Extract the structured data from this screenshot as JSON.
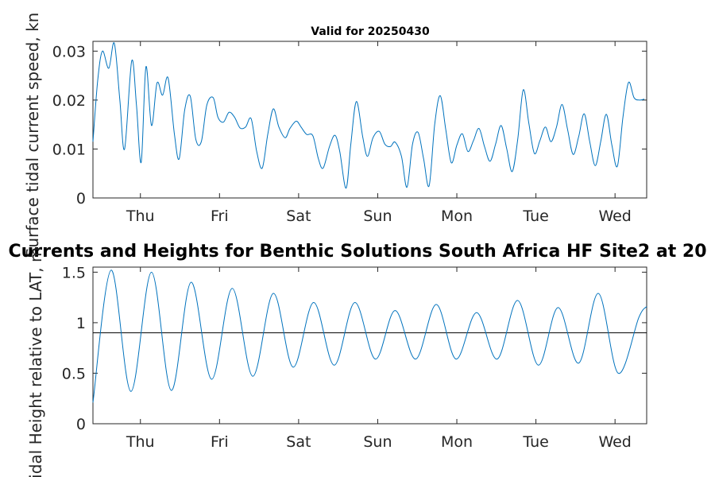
{
  "chart_data": [
    {
      "type": "line",
      "title": "Valid for 20250430",
      "ylabel": "Surface tidal current speed, kn",
      "xlabel": "",
      "ylim": [
        0,
        0.032
      ],
      "yticks": [
        0,
        0.01,
        0.02,
        0.03
      ],
      "ytick_labels": [
        "0",
        "0.01",
        "0.02",
        "0.03"
      ],
      "xlim": [
        0,
        7
      ],
      "xticks": [
        0.6,
        1.6,
        2.6,
        3.6,
        4.6,
        5.6,
        6.6
      ],
      "xtick_labels": [
        "Thu",
        "Fri",
        "Sat",
        "Sun",
        "Mon",
        "Tue",
        "Wed"
      ],
      "grid": false,
      "series": [
        {
          "color": "#0072bd",
          "x": [
            0.0,
            0.06,
            0.12,
            0.2,
            0.27,
            0.34,
            0.4,
            0.49,
            0.55,
            0.61,
            0.67,
            0.74,
            0.81,
            0.88,
            0.95,
            1.03,
            1.09,
            1.16,
            1.23,
            1.3,
            1.37,
            1.44,
            1.52,
            1.58,
            1.65,
            1.72,
            1.79,
            1.86,
            1.93,
            2.0,
            2.07,
            2.14,
            2.21,
            2.28,
            2.35,
            2.43,
            2.49,
            2.57,
            2.63,
            2.7,
            2.78,
            2.85,
            2.91,
            2.99,
            3.06,
            3.12,
            3.2,
            3.26,
            3.33,
            3.41,
            3.47,
            3.54,
            3.62,
            3.69,
            3.76,
            3.82,
            3.9,
            3.97,
            4.04,
            4.11,
            4.18,
            4.25,
            4.32,
            4.39,
            4.46,
            4.53,
            4.6,
            4.67,
            4.74,
            4.81,
            4.88,
            4.95,
            5.02,
            5.09,
            5.16,
            5.23,
            5.3,
            5.37,
            5.44,
            5.51,
            5.58,
            5.65,
            5.72,
            5.79,
            5.86,
            5.93,
            6.0,
            6.07,
            6.14,
            6.21,
            6.28,
            6.35,
            6.42,
            6.49,
            6.56,
            6.63,
            6.7,
            6.77,
            6.84,
            6.91,
            6.97
          ],
          "y": [
            0.0115,
            0.024,
            0.03,
            0.0265,
            0.0316,
            0.02,
            0.01,
            0.028,
            0.019,
            0.0073,
            0.0268,
            0.0148,
            0.0235,
            0.021,
            0.0245,
            0.013,
            0.008,
            0.018,
            0.0208,
            0.012,
            0.0115,
            0.019,
            0.0205,
            0.0165,
            0.0155,
            0.0175,
            0.0165,
            0.0143,
            0.0145,
            0.0162,
            0.0095,
            0.0061,
            0.013,
            0.0182,
            0.0145,
            0.0123,
            0.0142,
            0.0157,
            0.0145,
            0.013,
            0.0127,
            0.008,
            0.0061,
            0.0105,
            0.0128,
            0.0095,
            0.002,
            0.011,
            0.0197,
            0.0125,
            0.0085,
            0.0123,
            0.0136,
            0.011,
            0.0105,
            0.0114,
            0.0085,
            0.0022,
            0.011,
            0.0134,
            0.008,
            0.0025,
            0.015,
            0.0209,
            0.014,
            0.0072,
            0.0108,
            0.0131,
            0.0095,
            0.0117,
            0.0142,
            0.0105,
            0.0075,
            0.011,
            0.0148,
            0.0101,
            0.0054,
            0.012,
            0.0221,
            0.0153,
            0.0091,
            0.0117,
            0.0145,
            0.0115,
            0.0145,
            0.0191,
            0.014,
            0.0089,
            0.0125,
            0.0172,
            0.0115,
            0.0066,
            0.0116,
            0.0171,
            0.0108,
            0.0065,
            0.0165,
            0.0236,
            0.0205,
            0.02,
            0.0202
          ]
        }
      ]
    },
    {
      "type": "line",
      "title": "Currents and Heights for Benthic Solutions South Africa HF Site2 at 20",
      "ylabel": "Tidal Height relative to LAT, m",
      "xlabel": "",
      "ylim": [
        0,
        1.55
      ],
      "yticks": [
        0,
        0.5,
        1,
        1.5
      ],
      "ytick_labels": [
        "0",
        "0.5",
        "1",
        "1.5"
      ],
      "xlim": [
        0,
        7
      ],
      "xticks": [
        0.6,
        1.6,
        2.6,
        3.6,
        4.6,
        5.6,
        6.6
      ],
      "xtick_labels": [
        "Thu",
        "Fri",
        "Sat",
        "Sun",
        "Mon",
        "Tue",
        "Wed"
      ],
      "grid": false,
      "reference_line": 0.9,
      "series": [
        {
          "color": "#0072bd",
          "x": [
            0.0,
            0.23,
            0.48,
            0.74,
            0.99,
            1.24,
            1.5,
            1.76,
            2.02,
            2.28,
            2.53,
            2.79,
            3.05,
            3.31,
            3.57,
            3.82,
            4.08,
            4.34,
            4.59,
            4.85,
            5.11,
            5.37,
            5.63,
            5.88,
            6.14,
            6.39,
            6.64,
            6.9,
            7.0
          ],
          "y": [
            0.21,
            1.52,
            0.32,
            1.5,
            0.33,
            1.4,
            0.44,
            1.34,
            0.47,
            1.29,
            0.56,
            1.2,
            0.58,
            1.2,
            0.64,
            1.12,
            0.64,
            1.18,
            0.64,
            1.1,
            0.64,
            1.22,
            0.58,
            1.15,
            0.6,
            1.29,
            0.5,
            1.05,
            1.16
          ]
        }
      ]
    }
  ]
}
